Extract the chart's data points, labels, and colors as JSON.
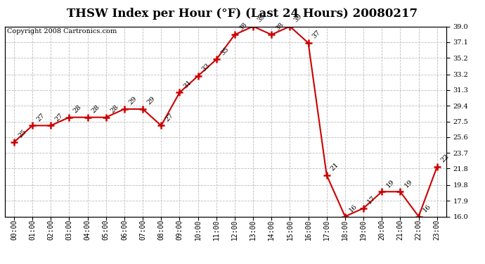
{
  "title": "THSW Index per Hour (°F) (Last 24 Hours) 20080217",
  "copyright": "Copyright 2008 Cartronics.com",
  "hours": [
    "00:00",
    "01:00",
    "02:00",
    "03:00",
    "04:00",
    "05:00",
    "06:00",
    "07:00",
    "08:00",
    "09:00",
    "10:00",
    "11:00",
    "12:00",
    "13:00",
    "14:00",
    "15:00",
    "16:00",
    "17:00",
    "18:00",
    "19:00",
    "20:00",
    "21:00",
    "22:00",
    "23:00"
  ],
  "values": [
    25,
    27,
    27,
    28,
    28,
    28,
    29,
    29,
    27,
    31,
    33,
    35,
    38,
    39,
    38,
    39,
    37,
    21,
    16,
    17,
    19,
    19,
    16,
    22
  ],
  "line_color": "#cc0000",
  "marker_color": "#cc0000",
  "bg_color": "#ffffff",
  "grid_color": "#bbbbbb",
  "title_fontsize": 12,
  "label_fontsize": 7,
  "tick_fontsize": 7,
  "copyright_fontsize": 7,
  "ylim_min": 16.0,
  "ylim_max": 39.0,
  "yticks": [
    16.0,
    17.9,
    19.8,
    21.8,
    23.7,
    25.6,
    27.5,
    29.4,
    31.3,
    33.2,
    35.2,
    37.1,
    39.0
  ]
}
